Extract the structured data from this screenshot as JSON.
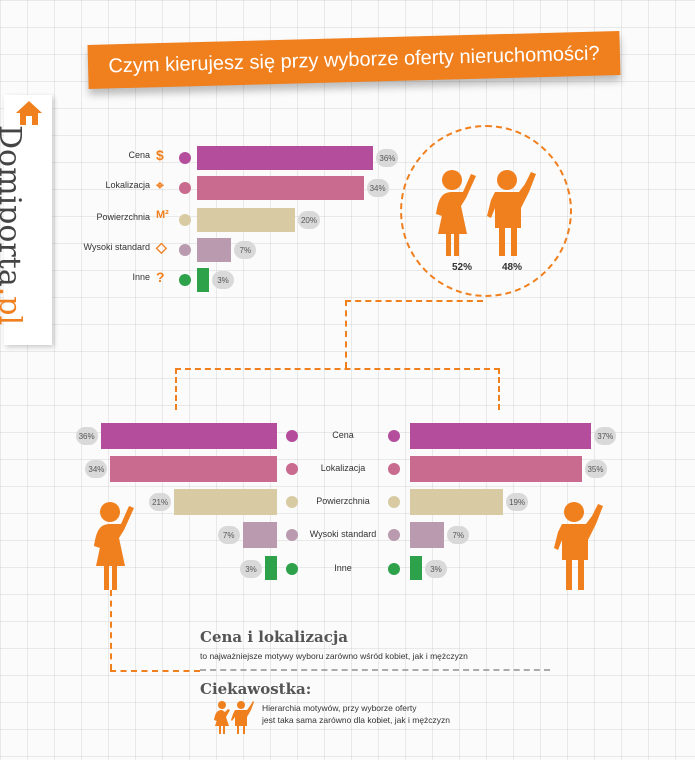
{
  "title": "Czym kierujesz się przy wyborze oferty nieruchomości?",
  "logo": {
    "main": "Domiporta",
    "suffix": ".pl"
  },
  "colors": {
    "accent": "#f07f1d",
    "cena": "#b44e9c",
    "lokalizacja": "#c96a8f",
    "powierzchnia": "#d8cba4",
    "standard": "#b99aae",
    "inne": "#2da24a"
  },
  "icons": [
    "dollar-icon",
    "location-pin-icon",
    "m2-icon",
    "diamond-icon",
    "question-icon"
  ],
  "gender_split": {
    "women": "52%",
    "men": "48%"
  },
  "summary": {
    "headline": "Cena i lokalizacja",
    "text": "to najważniejsze motywy wyboru zarówno wśród kobiet, jak i mężczyzn"
  },
  "trivia": {
    "headline": "Ciekawostka:",
    "line1": "Hierarchia motywów, przy wyborze oferty",
    "line2": "jest taka sama zarówno dla kobiet, jak i mężczyzn"
  },
  "chart_data": [
    {
      "type": "bar",
      "categories": [
        "Cena",
        "Lokalizacja",
        "Powierzchnia",
        "Wysoki standard",
        "Inne"
      ],
      "values": [
        36,
        34,
        20,
        7,
        3
      ],
      "labels": [
        "36%",
        "34%",
        "20%",
        "7%",
        "3%"
      ]
    },
    {
      "type": "bar",
      "categories": [
        "Cena",
        "Lokalizacja",
        "Powierzchnia",
        "Wysoki standard",
        "Inne"
      ],
      "values": [
        36,
        34,
        21,
        7,
        3
      ],
      "labels": [
        "36%",
        "34%",
        "21%",
        "7%",
        "3%"
      ]
    },
    {
      "type": "bar",
      "categories": [
        "Cena",
        "Lokalizacja",
        "Powierzchnia",
        "Wysoki standard",
        "Inne"
      ],
      "values": [
        37,
        35,
        19,
        7,
        3
      ],
      "labels": [
        "37%",
        "35%",
        "19%",
        "7%",
        "3%"
      ]
    }
  ]
}
